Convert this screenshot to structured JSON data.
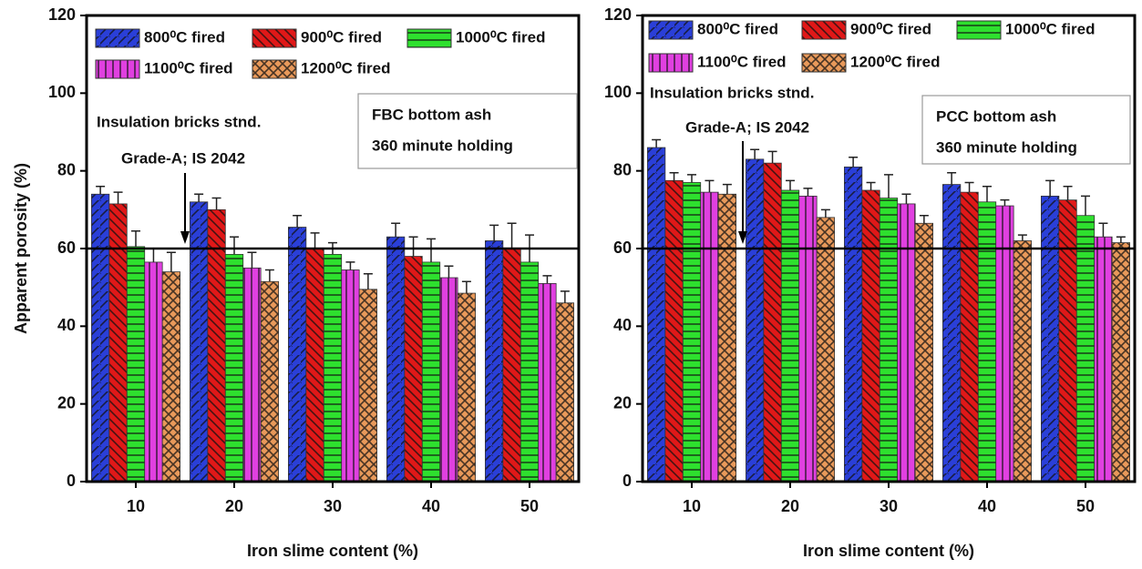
{
  "chart_data": [
    {
      "type": "bar",
      "x_label": "Iron slime content (%)",
      "y_label": "Apparent porosity (%)",
      "categories": [
        "10",
        "20",
        "30",
        "40",
        "50"
      ],
      "ylim": [
        0,
        120
      ],
      "yticks": [
        0,
        20,
        40,
        60,
        80,
        100,
        120
      ],
      "reference_line": 60,
      "annotations": [
        "Insulation bricks stnd.",
        "Grade-A; IS 2042"
      ],
      "box_text": [
        "FBC bottom ash",
        "360 minute holding"
      ],
      "series": [
        {
          "name": "800⁰C fired",
          "color": "#2a3fd8",
          "values": [
            74,
            72,
            65.5,
            63,
            62
          ],
          "errors": [
            2,
            2,
            3,
            3.5,
            4
          ]
        },
        {
          "name": "900⁰C fired",
          "color": "#e01818",
          "values": [
            71.5,
            70,
            60,
            58,
            60
          ],
          "errors": [
            3,
            3,
            4,
            5,
            6.5
          ]
        },
        {
          "name": "1000⁰C fired",
          "color": "#2ee02e",
          "values": [
            60.5,
            58.5,
            58.5,
            56.5,
            56.5
          ],
          "errors": [
            4,
            4.5,
            3,
            6,
            7
          ]
        },
        {
          "name": "1100⁰C fired",
          "color": "#e040e0",
          "values": [
            56.5,
            55,
            54.5,
            52.5,
            51
          ],
          "errors": [
            3.5,
            4,
            2,
            3,
            2
          ]
        },
        {
          "name": "1200⁰C fired",
          "color": "#e8995a",
          "values": [
            54,
            51.5,
            49.5,
            48.5,
            46
          ],
          "errors": [
            5,
            3,
            4,
            3,
            3
          ]
        }
      ]
    },
    {
      "type": "bar",
      "x_label": "Iron slime content (%)",
      "categories": [
        "10",
        "20",
        "30",
        "40",
        "50"
      ],
      "ylim": [
        0,
        120
      ],
      "yticks": [
        0,
        20,
        40,
        60,
        80,
        100,
        120
      ],
      "reference_line": 60,
      "annotations": [
        "Insulation bricks stnd.",
        "Grade-A; IS 2042"
      ],
      "box_text": [
        "PCC bottom ash",
        "360 minute holding"
      ],
      "series": [
        {
          "name": "800⁰C fired",
          "color": "#2a3fd8",
          "values": [
            86,
            83,
            81,
            76.5,
            73.5
          ],
          "errors": [
            2,
            2.5,
            2.5,
            3,
            4
          ]
        },
        {
          "name": "900⁰C fired",
          "color": "#e01818",
          "values": [
            77.5,
            82,
            75,
            74.5,
            72.5
          ],
          "errors": [
            2,
            3,
            2,
            2.5,
            3.5
          ]
        },
        {
          "name": "1000⁰C fired",
          "color": "#2ee02e",
          "values": [
            77,
            75,
            73,
            72,
            68.5
          ],
          "errors": [
            2,
            2.5,
            6,
            4,
            5
          ]
        },
        {
          "name": "1100⁰C fired",
          "color": "#e040e0",
          "values": [
            74.5,
            73.5,
            71.5,
            71,
            63
          ],
          "errors": [
            3,
            2,
            2.5,
            1.5,
            3.5
          ]
        },
        {
          "name": "1200⁰C fired",
          "color": "#e8995a",
          "values": [
            74,
            68,
            66.5,
            62,
            61.5
          ],
          "errors": [
            2.5,
            2,
            2,
            1.5,
            1.5
          ]
        }
      ]
    }
  ]
}
